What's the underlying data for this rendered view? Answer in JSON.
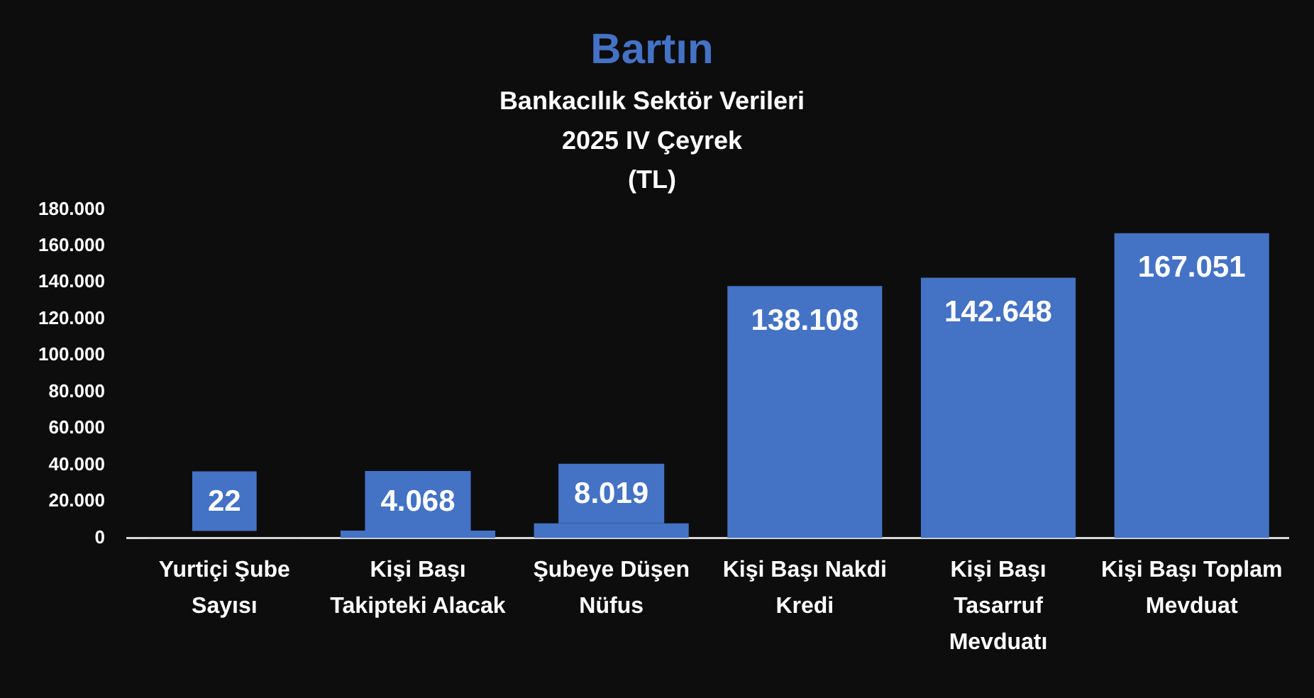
{
  "chart_data": {
    "type": "bar",
    "title": "Bartın",
    "subtitle": "Bankacılık Sektör Verileri\n2025 IV Çeyrek\n(TL)",
    "categories": [
      "Yurtiçi Şube Sayısı",
      "Kişi Başı Takipteki Alacak",
      "Şubeye Düşen Nüfus",
      "Kişi Başı Nakdi Kredi",
      "Kişi Başı Tasarruf Mevduatı",
      "Kişi Başı Toplam Mevduat"
    ],
    "values": [
      22,
      4068,
      8019,
      138108,
      142648,
      167051
    ],
    "value_labels": [
      "22",
      "4.068",
      "8.019",
      "138.108",
      "142.648",
      "167.051"
    ],
    "color": "#4472c4",
    "ylim": [
      0,
      180000
    ],
    "yticks": [
      0,
      {
        "value": 20000,
        "label": "20.000"
      },
      {
        "value": 40000,
        "label": "40.000"
      },
      {
        "value": 60000,
        "label": "60.000"
      },
      {
        "value": 80000,
        "label": "80.000"
      },
      {
        "value": 100000,
        "label": "100.000"
      },
      {
        "value": 120000,
        "label": "120.000"
      },
      {
        "value": 140000,
        "label": "140.000"
      },
      {
        "value": 160000,
        "label": "160.000"
      },
      {
        "value": 180000,
        "label": "180.000"
      }
    ]
  }
}
